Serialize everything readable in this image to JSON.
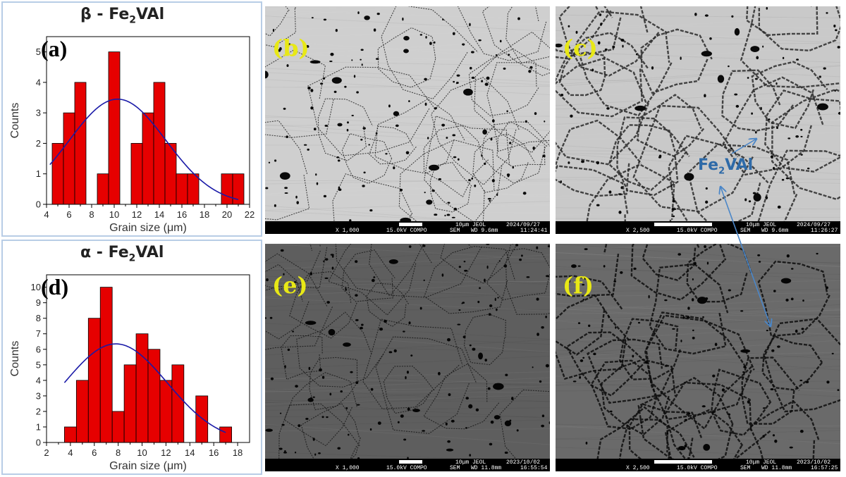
{
  "chart_data": [
    {
      "type": "bar",
      "panel": "(a)",
      "title_prefix": "β - Fe",
      "title_sub": "2",
      "title_suffix": "VAl",
      "xlabel": "Grain size (μm)",
      "ylabel": "Counts",
      "xlim": [
        4,
        22
      ],
      "ylim": [
        0,
        5.5
      ],
      "xticks": [
        4,
        6,
        8,
        10,
        12,
        14,
        16,
        18,
        20,
        22
      ],
      "yticks": [
        0,
        1,
        2,
        3,
        4,
        5
      ],
      "bin_width": 1,
      "bins_left": [
        4.5,
        5.5,
        6.5,
        8.5,
        9.5,
        11.5,
        12.5,
        13.5,
        14.5,
        15.5,
        16.5,
        19.5,
        20.5
      ],
      "values": [
        2,
        3,
        4,
        1,
        5,
        2,
        3,
        4,
        2,
        1,
        1,
        1,
        1
      ],
      "fit": {
        "type": "gaussian",
        "mean": 10.3,
        "sigma": 4.3,
        "amplitude": 3.45,
        "x_range": [
          4.3,
          21
        ]
      },
      "bar_color": "#e60000",
      "fit_color": "#1a1aa8"
    },
    {
      "type": "bar",
      "panel": "(d)",
      "title_prefix": "α - Fe",
      "title_sub": "2",
      "title_suffix": "VAl",
      "xlabel": "Grain size (μm)",
      "ylabel": "Counts",
      "xlim": [
        2,
        19
      ],
      "ylim": [
        0,
        10.8
      ],
      "xticks": [
        2,
        4,
        6,
        8,
        10,
        12,
        14,
        16,
        18
      ],
      "yticks": [
        0,
        1,
        2,
        3,
        4,
        5,
        6,
        7,
        8,
        9,
        10
      ],
      "bin_width": 1,
      "bins_left": [
        3.5,
        4.5,
        5.5,
        6.5,
        7.5,
        8.5,
        9.5,
        10.5,
        11.5,
        12.5,
        14.5,
        16.5
      ],
      "values": [
        1,
        4,
        8,
        10,
        2,
        5,
        7,
        6,
        4,
        5,
        3,
        1
      ],
      "fit": {
        "type": "gaussian",
        "mean": 7.8,
        "sigma": 4.3,
        "amplitude": 6.35,
        "x_range": [
          3.5,
          17
        ]
      },
      "bar_color": "#e60000",
      "fit_color": "#1a1aa8"
    }
  ],
  "sem_images": [
    {
      "label": "(b)",
      "scale_text": "10μm  JEOL",
      "date": "2024/09/27",
      "mag": "X 1,000",
      "kv": "15.0kV COMPO",
      "sem": "SEM",
      "wd": "WD 9.6mm",
      "time": "11:24:41",
      "tone": "#cfcfcf",
      "line": "#2a2a2a",
      "dots": "#0a0a0a"
    },
    {
      "label": "(c)",
      "scale_text": "10μm  JEOL",
      "date": "2024/09/27",
      "mag": "X 2,500",
      "kv": "15.0kV COMPO",
      "sem": "SEM",
      "wd": "WD 9.6mm",
      "time": "11:26:27",
      "tone": "#c9c9c9",
      "line": "#2a2a2a",
      "dots": "#0a0a0a"
    },
    {
      "label": "(e)",
      "scale_text": "10μm  JEOL",
      "date": "2023/10/02",
      "mag": "X 1,000",
      "kv": "15.0kV COMPO",
      "sem": "SEM",
      "wd": "WD 11.8mm",
      "time": "16:55:54",
      "tone": "#5e5e5e",
      "line": "#1a1a1a",
      "dots": "#050505"
    },
    {
      "label": "(f)",
      "scale_text": "10μm  JEOL",
      "date": "2023/10/02",
      "mag": "X 2,500",
      "kv": "15.0kV COMPO",
      "sem": "SEM",
      "wd": "WD 11.8mm",
      "time": "16:57:25",
      "tone": "#6a6a6a",
      "line": "#0d0d0d",
      "dots": "#050505"
    }
  ],
  "annotation": {
    "prefix": "Fe",
    "sub": "2",
    "suffix": "VAl",
    "color": "#2e6aa8"
  }
}
